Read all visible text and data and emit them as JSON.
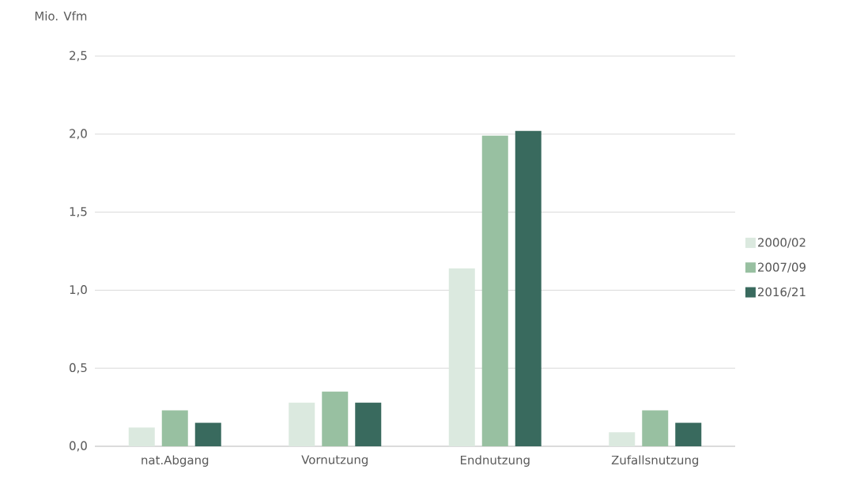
{
  "chart_data": {
    "type": "bar",
    "ylabel": "Mio. Vfm",
    "categories": [
      "nat.Abgang",
      "Vornutzung",
      "Endnutzung",
      "Zufallsnutzung"
    ],
    "series": [
      {
        "name": "2000/02",
        "color": "#dbe9df",
        "values": [
          0.12,
          0.28,
          1.14,
          0.09
        ]
      },
      {
        "name": "2007/09",
        "color": "#98c0a1",
        "values": [
          0.23,
          0.35,
          1.99,
          0.23
        ]
      },
      {
        "name": "2016/21",
        "color": "#396a5e",
        "values": [
          0.15,
          0.28,
          2.02,
          0.15
        ]
      }
    ],
    "ylim": [
      0,
      2.5
    ],
    "yticks": [
      {
        "value": 0,
        "label": "0,0"
      },
      {
        "value": 0.5,
        "label": "0,5"
      },
      {
        "value": 1,
        "label": "1,0"
      },
      {
        "value": 1.5,
        "label": "1,5"
      },
      {
        "value": 2,
        "label": "2,0"
      },
      {
        "value": 2.5,
        "label": "2,5"
      }
    ],
    "grid": "y",
    "legend": "right"
  }
}
